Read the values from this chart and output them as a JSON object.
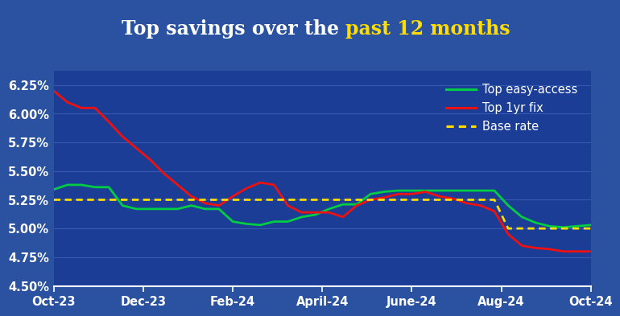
{
  "title_white": "Top savings over the ",
  "title_yellow": "past 12 months",
  "background_outer": "#2a52a0",
  "background_inner": "#1c3d96",
  "title_bg": "#0d2158",
  "grid_color": "#3d62b8",
  "text_color": "#ffffff",
  "ylim": [
    4.5,
    6.375
  ],
  "yticks": [
    4.5,
    4.75,
    5.0,
    5.25,
    5.5,
    5.75,
    6.0,
    6.25
  ],
  "ytick_labels": [
    "4.50%",
    "4.75%",
    "5.00%",
    "5.25%",
    "5.50%",
    "5.75%",
    "6.00%",
    "6.25%"
  ],
  "xtick_labels": [
    "Oct-23",
    "Dec-23",
    "Feb-24",
    "April-24",
    "June-24",
    "Aug-24",
    "Oct-24"
  ],
  "easy_access": [
    5.34,
    5.38,
    5.38,
    5.36,
    5.36,
    5.2,
    5.17,
    5.17,
    5.17,
    5.17,
    5.2,
    5.17,
    5.17,
    5.06,
    5.04,
    5.03,
    5.06,
    5.06,
    5.1,
    5.12,
    5.17,
    5.21,
    5.21,
    5.3,
    5.32,
    5.33,
    5.33,
    5.33,
    5.33,
    5.33,
    5.33,
    5.33,
    5.33,
    5.2,
    5.1,
    5.05,
    5.02,
    5.01,
    5.02,
    5.03
  ],
  "one_yr_fix": [
    6.2,
    6.1,
    6.05,
    6.05,
    5.93,
    5.8,
    5.7,
    5.6,
    5.48,
    5.38,
    5.28,
    5.22,
    5.2,
    5.28,
    5.35,
    5.4,
    5.38,
    5.2,
    5.14,
    5.14,
    5.14,
    5.1,
    5.2,
    5.25,
    5.27,
    5.3,
    5.3,
    5.32,
    5.28,
    5.26,
    5.22,
    5.2,
    5.15,
    4.95,
    4.85,
    4.83,
    4.82,
    4.8,
    4.8,
    4.8
  ],
  "base_rate": [
    5.25,
    5.25,
    5.25,
    5.25,
    5.25,
    5.25,
    5.25,
    5.25,
    5.25,
    5.25,
    5.25,
    5.25,
    5.25,
    5.25,
    5.25,
    5.25,
    5.25,
    5.25,
    5.25,
    5.25,
    5.25,
    5.25,
    5.25,
    5.25,
    5.25,
    5.25,
    5.25,
    5.25,
    5.25,
    5.25,
    5.25,
    5.25,
    5.25,
    5.0,
    5.0,
    5.0,
    5.0,
    5.0,
    5.0,
    5.0
  ],
  "easy_access_color": "#00cc44",
  "one_yr_fix_color": "#ee1111",
  "base_rate_color": "#ffdd00",
  "legend_labels": [
    "Top easy-access",
    "Top 1yr fix",
    "Base rate"
  ],
  "line_width": 2.0,
  "title_fontsize": 17,
  "legend_fontsize": 10.5,
  "tick_fontsize": 10.5
}
